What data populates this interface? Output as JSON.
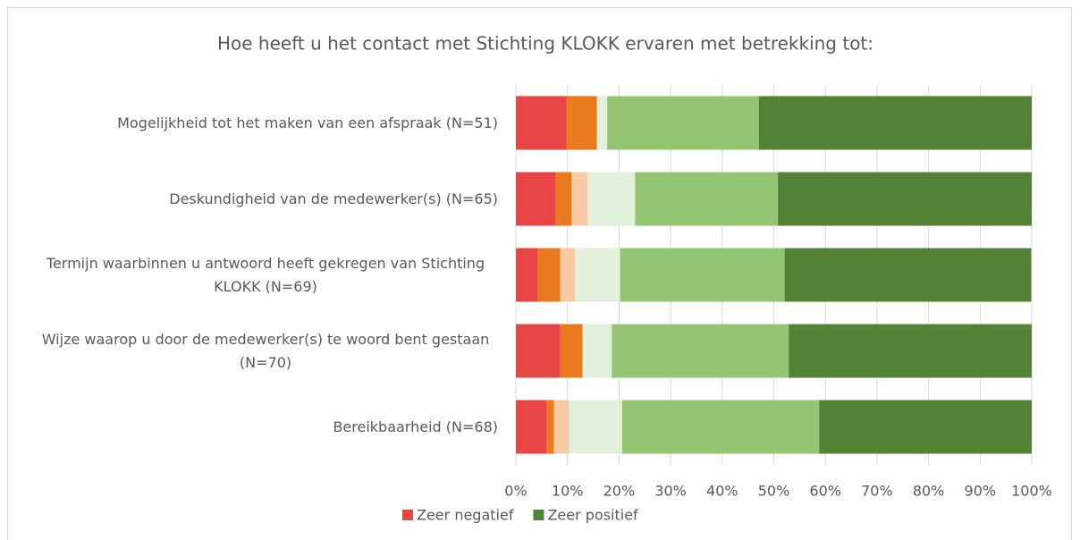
{
  "chart_data": {
    "type": "stacked-bar-horizontal",
    "title": "Hoe heeft u het contact met Stichting KLOKK ervaren met betrekking tot:",
    "categories": [
      "Mogelijkheid tot het maken van een afspraak (N=51)",
      "Deskundigheid van de medewerker(s) (N=65)",
      "Termijn waarbinnen u antwoord heeft gekregen van Stichting KLOKK (N=69)",
      "Wijze waarop u door de medewerker(s) te woord bent gestaan (N=70)",
      "Bereikbaarheid (N=68)"
    ],
    "series": [
      {
        "name": "Zeer negatief",
        "color": "#e84646",
        "values": [
          9.8,
          7.7,
          4.3,
          8.6,
          5.9
        ]
      },
      {
        "color": "#ea7a1e",
        "values": [
          5.9,
          3.1,
          4.3,
          4.3,
          1.5
        ]
      },
      {
        "color": "#f8cba4",
        "values": [
          0,
          3.1,
          2.9,
          0,
          2.9
        ]
      },
      {
        "color": "#e2efda",
        "values": [
          2.0,
          9.2,
          8.7,
          5.7,
          10.3
        ]
      },
      {
        "color": "#93c572",
        "values": [
          29.4,
          27.7,
          31.9,
          34.3,
          38.2
        ]
      },
      {
        "name": "Zeer positief",
        "color": "#538135",
        "values": [
          52.9,
          49.2,
          47.8,
          47.1,
          41.2
        ]
      }
    ],
    "xlim": [
      0,
      100
    ],
    "xticks": [
      {
        "value": 0,
        "label": "0%"
      },
      {
        "value": 10,
        "label": "10%"
      },
      {
        "value": 20,
        "label": "20%"
      },
      {
        "value": 30,
        "label": "30%"
      },
      {
        "value": 40,
        "label": "40%"
      },
      {
        "value": 50,
        "label": "50%"
      },
      {
        "value": 60,
        "label": "60%"
      },
      {
        "value": 70,
        "label": "70%"
      },
      {
        "value": 80,
        "label": "80%"
      },
      {
        "value": 90,
        "label": "90%"
      },
      {
        "value": 100,
        "label": "100%"
      }
    ],
    "grid": true,
    "legend": "bottom"
  }
}
